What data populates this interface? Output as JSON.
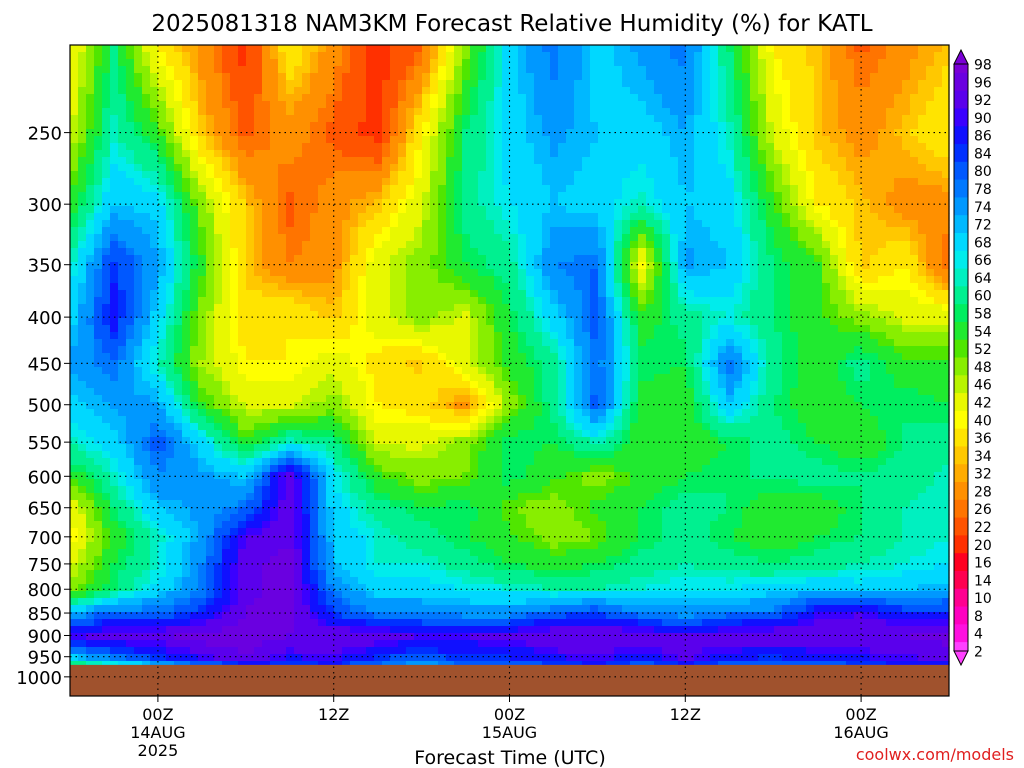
{
  "chart_data": {
    "type": "heatmap",
    "title": "2025081318 NAM3KM Forecast Relative Humidity (%) for KATL",
    "xlabel": "Forecast Time (UTC)",
    "ylabel": "",
    "watermark": "coolwx.com/models",
    "x_ticks": [
      {
        "lines": [
          "00Z",
          "14AUG",
          "2025"
        ],
        "forecast_hour": 6
      },
      {
        "lines": [
          "12Z"
        ],
        "forecast_hour": 18
      },
      {
        "lines": [
          "00Z",
          "15AUG"
        ],
        "forecast_hour": 30
      },
      {
        "lines": [
          "12Z"
        ],
        "forecast_hour": 42
      },
      {
        "lines": [
          "00Z",
          "16AUG"
        ],
        "forecast_hour": 54
      }
    ],
    "xlim_forecast_hour": [
      0,
      60
    ],
    "y_axis_scale": "log-pressure (hPa), decreasing upward",
    "ylim_hpa": [
      1050,
      200
    ],
    "y_ticks": [
      250,
      300,
      350,
      400,
      450,
      500,
      550,
      600,
      650,
      700,
      750,
      800,
      850,
      900,
      950,
      1000
    ],
    "grid": "dotted at each tick",
    "underground_from_hpa": 970,
    "colorbar_position": "right",
    "colorbar_labels": [
      98,
      96,
      92,
      90,
      86,
      84,
      80,
      78,
      74,
      72,
      68,
      66,
      64,
      60,
      58,
      54,
      52,
      48,
      46,
      42,
      40,
      36,
      34,
      32,
      28,
      26,
      22,
      20,
      16,
      14,
      10,
      8,
      4,
      2
    ],
    "colorbar_colors": [
      "#7a00d6",
      "#6a00e0",
      "#5a00ec",
      "#3a00ff",
      "#1010ff",
      "#0030ff",
      "#0058ff",
      "#0078ff",
      "#0098ff",
      "#00b8ff",
      "#00d8ff",
      "#00ecec",
      "#00f0c0",
      "#00f090",
      "#00ee60",
      "#20ea30",
      "#50e600",
      "#88ee00",
      "#b8f400",
      "#e8f800",
      "#ffff00",
      "#ffe400",
      "#ffc800",
      "#ffac00",
      "#ff9000",
      "#ff7400",
      "#ff5400",
      "#ff3000",
      "#ff0020",
      "#ff0050",
      "#ff0090",
      "#ff00c0",
      "#ff10e0",
      "#ff40ff"
    ],
    "rh_grid_columns_forecast_hour": [
      0,
      3,
      6,
      9,
      12,
      15,
      18,
      21,
      24,
      27,
      30,
      33,
      36,
      39,
      42,
      45,
      48,
      51,
      54,
      57,
      60
    ],
    "rh_grid_rows_hpa": [
      200,
      250,
      300,
      350,
      400,
      450,
      500,
      550,
      600,
      650,
      700,
      750,
      800,
      850,
      900,
      950,
      970
    ],
    "rh_values_percent": [
      [
        40,
        60,
        40,
        30,
        20,
        40,
        30,
        20,
        25,
        50,
        70,
        80,
        70,
        75,
        80,
        60,
        40,
        35,
        25,
        30,
        35
      ],
      [
        45,
        65,
        55,
        35,
        25,
        30,
        25,
        20,
        40,
        60,
        70,
        75,
        72,
        70,
        74,
        65,
        45,
        35,
        30,
        35,
        40
      ],
      [
        55,
        72,
        70,
        50,
        35,
        25,
        30,
        35,
        45,
        62,
        68,
        72,
        70,
        65,
        72,
        70,
        55,
        40,
        35,
        30,
        30
      ],
      [
        65,
        85,
        75,
        55,
        35,
        28,
        30,
        45,
        50,
        58,
        62,
        78,
        80,
        40,
        75,
        72,
        60,
        55,
        35,
        40,
        25
      ],
      [
        70,
        88,
        70,
        50,
        38,
        40,
        35,
        45,
        50,
        45,
        58,
        70,
        82,
        55,
        62,
        66,
        60,
        55,
        50,
        45,
        45
      ],
      [
        75,
        80,
        65,
        48,
        40,
        40,
        45,
        38,
        35,
        45,
        55,
        62,
        80,
        60,
        58,
        80,
        62,
        55,
        62,
        55,
        55
      ],
      [
        70,
        75,
        75,
        55,
        45,
        45,
        50,
        40,
        38,
        30,
        50,
        62,
        82,
        55,
        55,
        72,
        60,
        55,
        58,
        60,
        58
      ],
      [
        65,
        70,
        82,
        70,
        55,
        65,
        62,
        45,
        45,
        50,
        60,
        58,
        65,
        55,
        55,
        58,
        62,
        58,
        55,
        60,
        62
      ],
      [
        55,
        65,
        78,
        75,
        72,
        95,
        68,
        55,
        50,
        52,
        60,
        55,
        50,
        55,
        58,
        60,
        60,
        62,
        60,
        62,
        65
      ],
      [
        42,
        60,
        72,
        75,
        80,
        95,
        70,
        62,
        58,
        60,
        52,
        50,
        55,
        58,
        62,
        60,
        55,
        55,
        60,
        64,
        66
      ],
      [
        40,
        55,
        65,
        75,
        92,
        95,
        72,
        66,
        62,
        58,
        55,
        50,
        52,
        58,
        62,
        58,
        55,
        58,
        60,
        64,
        66
      ],
      [
        45,
        58,
        65,
        78,
        95,
        98,
        72,
        66,
        66,
        62,
        58,
        56,
        58,
        62,
        64,
        62,
        60,
        62,
        64,
        66,
        68
      ],
      [
        50,
        60,
        70,
        78,
        95,
        98,
        78,
        70,
        70,
        68,
        66,
        64,
        64,
        66,
        68,
        68,
        70,
        72,
        70,
        72,
        74
      ],
      [
        72,
        82,
        80,
        86,
        96,
        98,
        84,
        78,
        78,
        76,
        76,
        82,
        84,
        78,
        76,
        78,
        80,
        90,
        92,
        86,
        86
      ],
      [
        92,
        95,
        95,
        98,
        98,
        96,
        96,
        95,
        92,
        92,
        94,
        96,
        96,
        96,
        92,
        96,
        96,
        96,
        96,
        96,
        98
      ],
      [
        72,
        80,
        86,
        92,
        96,
        90,
        92,
        86,
        82,
        86,
        86,
        90,
        92,
        88,
        94,
        88,
        86,
        88,
        90,
        92,
        94
      ],
      [
        60,
        66,
        74,
        80,
        86,
        84,
        86,
        80,
        76,
        80,
        82,
        84,
        86,
        82,
        86,
        82,
        80,
        82,
        84,
        86,
        88
      ]
    ]
  }
}
